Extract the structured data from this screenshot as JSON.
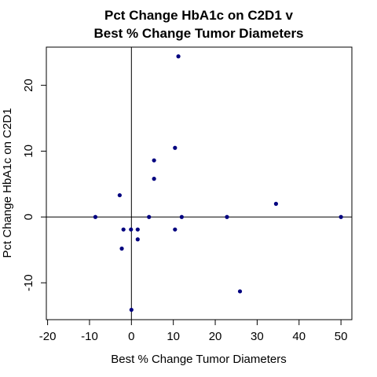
{
  "chart_data": {
    "type": "scatter",
    "title_lines": [
      "Pct Change HbA1c on C2D1 v",
      "Best % Change Tumor Diameters"
    ],
    "xlabel": "Best % Change Tumor Diameters",
    "ylabel": "Pct Change HbA1c on C2D1",
    "xlim": [
      -20.3,
      52.6
    ],
    "ylim": [
      -15.6,
      25.8
    ],
    "x_ticks": [
      -20,
      -10,
      0,
      10,
      20,
      30,
      40,
      50
    ],
    "y_ticks": [
      -10,
      0,
      10,
      20
    ],
    "reference_lines": {
      "x": 0,
      "y": 0
    },
    "point_color": "#00007f",
    "points": [
      {
        "x": 11.2,
        "y": 24.4
      },
      {
        "x": 10.4,
        "y": 10.5
      },
      {
        "x": 5.4,
        "y": 8.6
      },
      {
        "x": 5.4,
        "y": 5.8
      },
      {
        "x": -2.8,
        "y": 3.3
      },
      {
        "x": 34.5,
        "y": 2.0
      },
      {
        "x": -8.6,
        "y": 0.0
      },
      {
        "x": 4.2,
        "y": 0.0
      },
      {
        "x": 12.0,
        "y": 0.0
      },
      {
        "x": 22.8,
        "y": 0.0
      },
      {
        "x": 50.0,
        "y": 0.0
      },
      {
        "x": -1.9,
        "y": -1.9
      },
      {
        "x": -0.1,
        "y": -1.9
      },
      {
        "x": 1.5,
        "y": -1.9
      },
      {
        "x": 10.4,
        "y": -1.9
      },
      {
        "x": 1.5,
        "y": -3.4
      },
      {
        "x": -2.3,
        "y": -4.8
      },
      {
        "x": 25.9,
        "y": -11.3
      },
      {
        "x": 0.0,
        "y": -14.1
      }
    ]
  }
}
